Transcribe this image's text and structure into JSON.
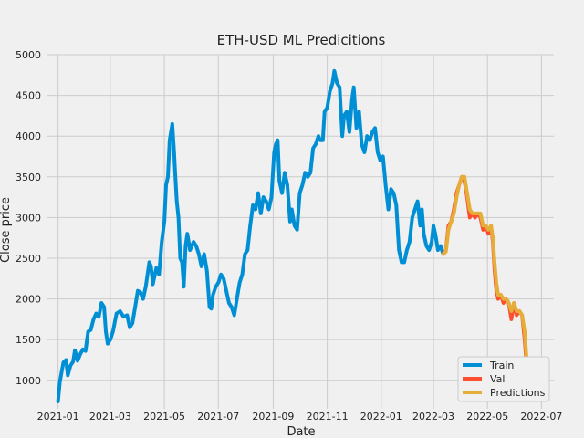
{
  "chart_data": {
    "type": "line",
    "title": "ETH-USD ML Predicitions",
    "xlabel": "Date",
    "ylabel": "Close price",
    "xlim": [
      "2020-12-20",
      "2022-07-15"
    ],
    "ylim": [
      650,
      5000
    ],
    "yticks": [
      1000,
      1500,
      2000,
      2500,
      3000,
      3500,
      4000,
      4500,
      5000
    ],
    "xticks": [
      "2021-01",
      "2021-03",
      "2021-05",
      "2021-07",
      "2021-09",
      "2021-11",
      "2022-01",
      "2022-03",
      "2022-05",
      "2022-07"
    ],
    "grid": true,
    "legend_position": "bottom-right",
    "colors": {
      "train": "#008fd5",
      "val": "#fc4f30",
      "predictions": "#e5ae38",
      "background": "#f0f0f0",
      "grid": "#cbcbcb"
    },
    "series": [
      {
        "name": "Train",
        "points": [
          [
            "2021-01-01",
            740
          ],
          [
            "2021-01-03",
            980
          ],
          [
            "2021-01-05",
            1100
          ],
          [
            "2021-01-07",
            1220
          ],
          [
            "2021-01-10",
            1250
          ],
          [
            "2021-01-12",
            1060
          ],
          [
            "2021-01-15",
            1180
          ],
          [
            "2021-01-18",
            1230
          ],
          [
            "2021-01-20",
            1370
          ],
          [
            "2021-01-23",
            1240
          ],
          [
            "2021-01-26",
            1320
          ],
          [
            "2021-01-29",
            1380
          ],
          [
            "2021-02-01",
            1360
          ],
          [
            "2021-02-04",
            1600
          ],
          [
            "2021-02-07",
            1620
          ],
          [
            "2021-02-10",
            1750
          ],
          [
            "2021-02-13",
            1820
          ],
          [
            "2021-02-16",
            1780
          ],
          [
            "2021-02-19",
            1950
          ],
          [
            "2021-02-22",
            1900
          ],
          [
            "2021-02-24",
            1600
          ],
          [
            "2021-02-26",
            1450
          ],
          [
            "2021-03-01",
            1500
          ],
          [
            "2021-03-04",
            1600
          ],
          [
            "2021-03-08",
            1820
          ],
          [
            "2021-03-12",
            1850
          ],
          [
            "2021-03-16",
            1780
          ],
          [
            "2021-03-20",
            1800
          ],
          [
            "2021-03-23",
            1650
          ],
          [
            "2021-03-26",
            1700
          ],
          [
            "2021-03-29",
            1900
          ],
          [
            "2021-04-01",
            2100
          ],
          [
            "2021-04-04",
            2080
          ],
          [
            "2021-04-07",
            2000
          ],
          [
            "2021-04-10",
            2150
          ],
          [
            "2021-04-14",
            2450
          ],
          [
            "2021-04-16",
            2400
          ],
          [
            "2021-04-18",
            2180
          ],
          [
            "2021-04-22",
            2380
          ],
          [
            "2021-04-25",
            2300
          ],
          [
            "2021-04-28",
            2700
          ],
          [
            "2021-05-01",
            2950
          ],
          [
            "2021-05-03",
            3400
          ],
          [
            "2021-05-05",
            3500
          ],
          [
            "2021-05-07",
            3950
          ],
          [
            "2021-05-10",
            4150
          ],
          [
            "2021-05-12",
            3800
          ],
          [
            "2021-05-13",
            3600
          ],
          [
            "2021-05-15",
            3200
          ],
          [
            "2021-05-17",
            3000
          ],
          [
            "2021-05-19",
            2500
          ],
          [
            "2021-05-21",
            2450
          ],
          [
            "2021-05-23",
            2150
          ],
          [
            "2021-05-25",
            2650
          ],
          [
            "2021-05-27",
            2800
          ],
          [
            "2021-05-30",
            2600
          ],
          [
            "2021-06-03",
            2700
          ],
          [
            "2021-06-06",
            2650
          ],
          [
            "2021-06-09",
            2550
          ],
          [
            "2021-06-12",
            2400
          ],
          [
            "2021-06-15",
            2550
          ],
          [
            "2021-06-18",
            2350
          ],
          [
            "2021-06-21",
            1900
          ],
          [
            "2021-06-23",
            1880
          ],
          [
            "2021-06-25",
            2050
          ],
          [
            "2021-06-28",
            2150
          ],
          [
            "2021-07-01",
            2200
          ],
          [
            "2021-07-04",
            2300
          ],
          [
            "2021-07-07",
            2250
          ],
          [
            "2021-07-10",
            2100
          ],
          [
            "2021-07-13",
            1950
          ],
          [
            "2021-07-16",
            1900
          ],
          [
            "2021-07-19",
            1800
          ],
          [
            "2021-07-22",
            2000
          ],
          [
            "2021-07-25",
            2200
          ],
          [
            "2021-07-28",
            2300
          ],
          [
            "2021-07-31",
            2550
          ],
          [
            "2021-08-03",
            2600
          ],
          [
            "2021-08-06",
            2900
          ],
          [
            "2021-08-09",
            3150
          ],
          [
            "2021-08-12",
            3100
          ],
          [
            "2021-08-15",
            3300
          ],
          [
            "2021-08-18",
            3050
          ],
          [
            "2021-08-21",
            3250
          ],
          [
            "2021-08-24",
            3200
          ],
          [
            "2021-08-27",
            3100
          ],
          [
            "2021-08-30",
            3250
          ],
          [
            "2021-09-02",
            3800
          ],
          [
            "2021-09-04",
            3900
          ],
          [
            "2021-09-06",
            3950
          ],
          [
            "2021-09-08",
            3450
          ],
          [
            "2021-09-11",
            3300
          ],
          [
            "2021-09-14",
            3550
          ],
          [
            "2021-09-17",
            3400
          ],
          [
            "2021-09-20",
            2950
          ],
          [
            "2021-09-22",
            3100
          ],
          [
            "2021-09-25",
            2900
          ],
          [
            "2021-09-28",
            2850
          ],
          [
            "2021-10-01",
            3300
          ],
          [
            "2021-10-04",
            3400
          ],
          [
            "2021-10-07",
            3550
          ],
          [
            "2021-10-10",
            3500
          ],
          [
            "2021-10-13",
            3550
          ],
          [
            "2021-10-16",
            3850
          ],
          [
            "2021-10-19",
            3900
          ],
          [
            "2021-10-22",
            4000
          ],
          [
            "2021-10-24",
            3950
          ],
          [
            "2021-10-27",
            3950
          ],
          [
            "2021-10-29",
            4300
          ],
          [
            "2021-11-01",
            4350
          ],
          [
            "2021-11-04",
            4550
          ],
          [
            "2021-11-07",
            4650
          ],
          [
            "2021-11-09",
            4800
          ],
          [
            "2021-11-12",
            4650
          ],
          [
            "2021-11-15",
            4600
          ],
          [
            "2021-11-18",
            4000
          ],
          [
            "2021-11-20",
            4250
          ],
          [
            "2021-11-23",
            4300
          ],
          [
            "2021-11-26",
            4050
          ],
          [
            "2021-11-29",
            4450
          ],
          [
            "2021-12-01",
            4600
          ],
          [
            "2021-12-04",
            4100
          ],
          [
            "2021-12-07",
            4300
          ],
          [
            "2021-12-10",
            3900
          ],
          [
            "2021-12-13",
            3800
          ],
          [
            "2021-12-16",
            4000
          ],
          [
            "2021-12-19",
            3950
          ],
          [
            "2021-12-22",
            4050
          ],
          [
            "2021-12-25",
            4100
          ],
          [
            "2021-12-28",
            3800
          ],
          [
            "2021-12-31",
            3700
          ],
          [
            "2022-01-03",
            3750
          ],
          [
            "2022-01-06",
            3400
          ],
          [
            "2022-01-09",
            3100
          ],
          [
            "2022-01-12",
            3350
          ],
          [
            "2022-01-15",
            3300
          ],
          [
            "2022-01-18",
            3150
          ],
          [
            "2022-01-21",
            2600
          ],
          [
            "2022-01-24",
            2450
          ],
          [
            "2022-01-27",
            2450
          ],
          [
            "2022-01-30",
            2600
          ],
          [
            "2022-02-02",
            2700
          ],
          [
            "2022-02-05",
            3000
          ],
          [
            "2022-02-08",
            3100
          ],
          [
            "2022-02-11",
            3200
          ],
          [
            "2022-02-14",
            2900
          ],
          [
            "2022-02-16",
            3100
          ],
          [
            "2022-02-18",
            2800
          ],
          [
            "2022-02-21",
            2650
          ],
          [
            "2022-02-24",
            2600
          ],
          [
            "2022-02-27",
            2700
          ],
          [
            "2022-03-01",
            2900
          ],
          [
            "2022-03-03",
            2800
          ],
          [
            "2022-03-06",
            2600
          ],
          [
            "2022-03-09",
            2650
          ],
          [
            "2022-03-12",
            2550
          ]
        ]
      },
      {
        "name": "Val",
        "points": [
          [
            "2022-03-12",
            2550
          ],
          [
            "2022-03-15",
            2600
          ],
          [
            "2022-03-18",
            2900
          ],
          [
            "2022-03-21",
            2950
          ],
          [
            "2022-03-24",
            3100
          ],
          [
            "2022-03-27",
            3300
          ],
          [
            "2022-03-30",
            3400
          ],
          [
            "2022-04-02",
            3500
          ],
          [
            "2022-04-05",
            3450
          ],
          [
            "2022-04-08",
            3250
          ],
          [
            "2022-04-11",
            3000
          ],
          [
            "2022-04-14",
            3050
          ],
          [
            "2022-04-17",
            3000
          ],
          [
            "2022-04-20",
            3050
          ],
          [
            "2022-04-23",
            3000
          ],
          [
            "2022-04-26",
            2850
          ],
          [
            "2022-04-29",
            2900
          ],
          [
            "2022-05-02",
            2800
          ],
          [
            "2022-05-05",
            2900
          ],
          [
            "2022-05-07",
            2700
          ],
          [
            "2022-05-09",
            2350
          ],
          [
            "2022-05-11",
            2100
          ],
          [
            "2022-05-13",
            2000
          ],
          [
            "2022-05-16",
            2050
          ],
          [
            "2022-05-19",
            1950
          ],
          [
            "2022-05-22",
            2000
          ],
          [
            "2022-05-25",
            1950
          ],
          [
            "2022-05-28",
            1750
          ],
          [
            "2022-05-31",
            1950
          ],
          [
            "2022-06-03",
            1800
          ],
          [
            "2022-06-06",
            1850
          ],
          [
            "2022-06-09",
            1800
          ],
          [
            "2022-06-12",
            1500
          ],
          [
            "2022-06-14",
            1200
          ],
          [
            "2022-06-16",
            1100
          ],
          [
            "2022-06-18",
            1000
          ],
          [
            "2022-06-20",
            1100
          ],
          [
            "2022-06-23",
            1150
          ],
          [
            "2022-06-26",
            1200
          ],
          [
            "2022-06-29",
            1100
          ]
        ]
      },
      {
        "name": "Predictions",
        "points": [
          [
            "2022-03-12",
            2550
          ],
          [
            "2022-03-15",
            2580
          ],
          [
            "2022-03-18",
            2850
          ],
          [
            "2022-03-21",
            2950
          ],
          [
            "2022-03-24",
            3050
          ],
          [
            "2022-03-27",
            3250
          ],
          [
            "2022-03-30",
            3400
          ],
          [
            "2022-04-02",
            3500
          ],
          [
            "2022-04-05",
            3500
          ],
          [
            "2022-04-08",
            3300
          ],
          [
            "2022-04-11",
            3100
          ],
          [
            "2022-04-14",
            3050
          ],
          [
            "2022-04-17",
            3050
          ],
          [
            "2022-04-20",
            3050
          ],
          [
            "2022-04-23",
            3050
          ],
          [
            "2022-04-26",
            2900
          ],
          [
            "2022-04-29",
            2900
          ],
          [
            "2022-05-02",
            2850
          ],
          [
            "2022-05-05",
            2900
          ],
          [
            "2022-05-07",
            2750
          ],
          [
            "2022-05-09",
            2450
          ],
          [
            "2022-05-11",
            2200
          ],
          [
            "2022-05-13",
            2050
          ],
          [
            "2022-05-16",
            2050
          ],
          [
            "2022-05-19",
            2000
          ],
          [
            "2022-05-22",
            2000
          ],
          [
            "2022-05-25",
            1950
          ],
          [
            "2022-05-28",
            1850
          ],
          [
            "2022-05-31",
            1950
          ],
          [
            "2022-06-03",
            1850
          ],
          [
            "2022-06-06",
            1850
          ],
          [
            "2022-06-09",
            1800
          ],
          [
            "2022-06-12",
            1600
          ],
          [
            "2022-06-14",
            1300
          ],
          [
            "2022-06-16",
            1150
          ],
          [
            "2022-06-18",
            1050
          ],
          [
            "2022-06-20",
            1100
          ],
          [
            "2022-06-23",
            1150
          ],
          [
            "2022-06-26",
            1200
          ],
          [
            "2022-06-29",
            1150
          ]
        ]
      }
    ]
  }
}
